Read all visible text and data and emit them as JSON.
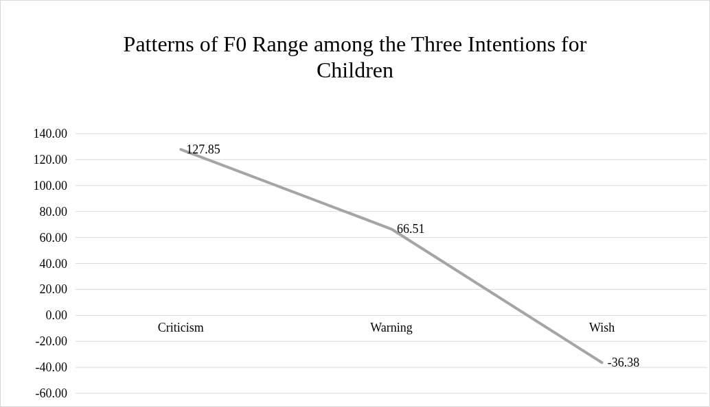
{
  "chart_data": {
    "type": "line",
    "title": "Patterns of F0 Range among the Three Intentions for Children",
    "categories": [
      "Criticism",
      "Warning",
      "Wish"
    ],
    "series": [
      {
        "color": "#a5a5a5",
        "values": [
          127.85,
          66.51,
          -36.38
        ]
      }
    ],
    "ylim": [
      -60,
      140
    ],
    "yticks": [
      {
        "value": -60,
        "label": "-60.00"
      },
      {
        "value": -40,
        "label": "-40.00"
      },
      {
        "value": -20,
        "label": "-20.00"
      },
      {
        "value": 0,
        "label": "0.00"
      },
      {
        "value": 20,
        "label": "20.00"
      },
      {
        "value": 40,
        "label": "40.00"
      },
      {
        "value": 60,
        "label": "60.00"
      },
      {
        "value": 80,
        "label": "80.00"
      },
      {
        "value": 100,
        "label": "100.00"
      },
      {
        "value": 120,
        "label": "120.00"
      },
      {
        "value": 140,
        "label": "140.00"
      }
    ],
    "grid": "y",
    "data_labels": true,
    "marker": "none",
    "line_style": "solid"
  }
}
